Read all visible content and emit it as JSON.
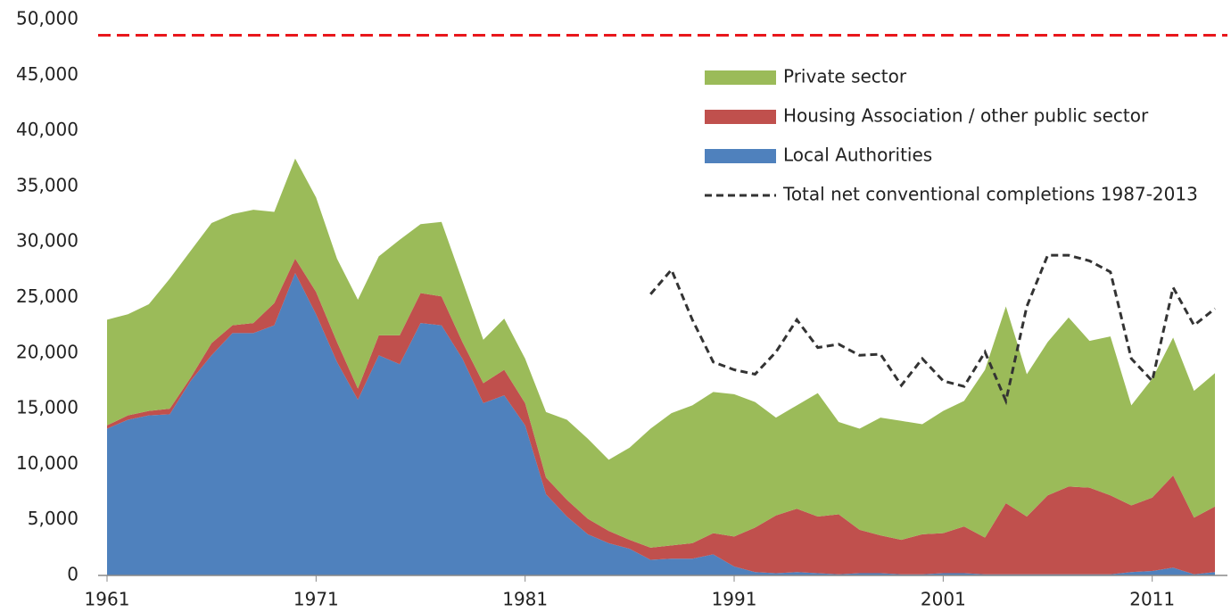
{
  "chart_data": {
    "type": "area",
    "stacked": true,
    "x": [
      1961,
      1962,
      1963,
      1964,
      1965,
      1966,
      1967,
      1968,
      1969,
      1970,
      1971,
      1972,
      1973,
      1974,
      1975,
      1976,
      1977,
      1978,
      1979,
      1980,
      1981,
      1982,
      1983,
      1984,
      1985,
      1986,
      1987,
      1988,
      1989,
      1990,
      1991,
      1992,
      1993,
      1994,
      1995,
      1996,
      1997,
      1998,
      1999,
      2000,
      2001,
      2002,
      2003,
      2004,
      2005,
      2006,
      2007,
      2008,
      2009,
      2010,
      2011,
      2012,
      2013,
      2014
    ],
    "series": [
      {
        "name": "Local Authorities",
        "color": "#4f81bd",
        "values": [
          13200,
          14000,
          14400,
          14500,
          17500,
          19800,
          21800,
          21800,
          22500,
          27200,
          23500,
          19200,
          15800,
          19800,
          19000,
          22700,
          22500,
          19500,
          15500,
          16200,
          13500,
          7300,
          5300,
          3700,
          2900,
          2400,
          1400,
          1500,
          1500,
          1900,
          800,
          300,
          200,
          300,
          200,
          100,
          200,
          200,
          100,
          100,
          200,
          200,
          100,
          100,
          100,
          100,
          100,
          100,
          100,
          300,
          400,
          700,
          100,
          300
        ]
      },
      {
        "name": "Housing Association / other public sector",
        "color": "#c0504d",
        "values": [
          300,
          400,
          400,
          500,
          300,
          1100,
          700,
          900,
          2000,
          1300,
          2000,
          1800,
          1000,
          1800,
          2600,
          2700,
          2600,
          1500,
          1800,
          2300,
          2000,
          1500,
          1500,
          1400,
          1100,
          800,
          1100,
          1200,
          1400,
          1900,
          2700,
          4000,
          5200,
          5700,
          5100,
          5400,
          3900,
          3400,
          3100,
          3600,
          3600,
          4200,
          3300,
          6400,
          5200,
          7100,
          7900,
          7800,
          7100,
          6000,
          6600,
          8300,
          5100,
          5900
        ]
      },
      {
        "name": "Private sector",
        "color": "#9bbb59",
        "values": [
          9500,
          9100,
          9600,
          11700,
          11400,
          10800,
          10000,
          10200,
          8200,
          9000,
          8500,
          7500,
          8000,
          7100,
          8600,
          6200,
          6700,
          5500,
          3900,
          4600,
          4000,
          5900,
          7200,
          7200,
          6400,
          8300,
          10700,
          11900,
          12400,
          12700,
          12800,
          11300,
          8800,
          9300,
          11100,
          8300,
          9100,
          10600,
          10700,
          9900,
          11000,
          11300,
          15100,
          17700,
          12800,
          13800,
          15200,
          13200,
          14300,
          9000,
          10700,
          12400,
          11400,
          12000
        ]
      },
      {
        "name": "Total net conventional completions 1987-2013",
        "type": "line",
        "dashed": true,
        "color": "#333333",
        "values": [
          null,
          null,
          null,
          null,
          null,
          null,
          null,
          null,
          null,
          null,
          null,
          null,
          null,
          null,
          null,
          null,
          null,
          null,
          null,
          null,
          null,
          null,
          null,
          null,
          null,
          null,
          25300,
          27500,
          23000,
          19200,
          18500,
          18100,
          20100,
          23000,
          20500,
          20800,
          19800,
          19900,
          17100,
          19500,
          17500,
          17000,
          20100,
          15700,
          24200,
          28800,
          28800,
          28300,
          27300,
          19500,
          17500,
          25900,
          22500,
          24000
        ]
      }
    ],
    "reference_line": {
      "value": 48600,
      "color": "#e8171c",
      "dashed": true
    },
    "xlim": [
      1961,
      2014
    ],
    "xticks": [
      1961,
      1971,
      1981,
      1991,
      2001,
      2011
    ],
    "ylim": [
      0,
      50000
    ],
    "yticks": [
      0,
      {
        "value": 5000,
        "label": "5,000"
      },
      {
        "value": 10000,
        "label": "10,000"
      },
      {
        "value": 15000,
        "label": "15,000"
      },
      {
        "value": 20000,
        "label": "20,000"
      },
      {
        "value": 25000,
        "label": "25,000"
      },
      {
        "value": 30000,
        "label": "30,000"
      },
      {
        "value": 35000,
        "label": "35,000"
      },
      {
        "value": 40000,
        "label": "40,000"
      },
      {
        "value": 45000,
        "label": "45,000"
      },
      {
        "value": 50000,
        "label": "50,000"
      }
    ],
    "legend": "top-right",
    "grid": false
  }
}
